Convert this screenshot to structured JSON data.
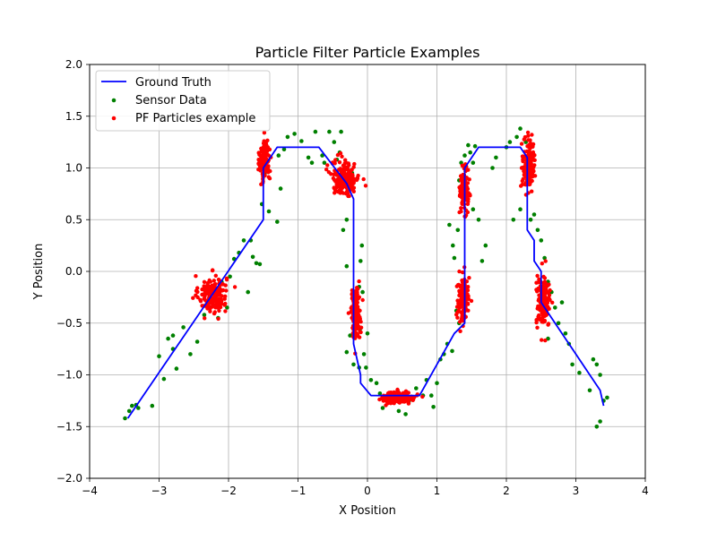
{
  "chart_data": {
    "type": "scatter",
    "title": "Particle Filter Particle Examples",
    "xlabel": "X Position",
    "ylabel": "Y Position",
    "xlim": [
      -4,
      4
    ],
    "ylim": [
      -2,
      2
    ],
    "xticks": [
      -4,
      -3,
      -2,
      -1,
      0,
      1,
      2,
      3,
      4
    ],
    "xtick_labels": [
      "−4",
      "−3",
      "−2",
      "−1",
      "0",
      "1",
      "2",
      "3",
      "4"
    ],
    "yticks": [
      -2.0,
      -1.5,
      -1.0,
      -0.5,
      0.0,
      0.5,
      1.0,
      1.5,
      2.0
    ],
    "ytick_labels": [
      "−2.0",
      "−1.5",
      "−1.0",
      "−0.5",
      "0.0",
      "0.5",
      "1.0",
      "1.5",
      "2.0"
    ],
    "grid": true,
    "legend_position": "top-left",
    "legend": [
      {
        "label": "Ground Truth",
        "kind": "line",
        "color": "#0000ff"
      },
      {
        "label": "Sensor Data",
        "kind": "marker",
        "color": "#008000"
      },
      {
        "label": "PF Particles example",
        "kind": "marker",
        "color": "#ff0000"
      }
    ],
    "series": [
      {
        "name": "Ground Truth",
        "kind": "line",
        "color": "#0000ff",
        "points": [
          [
            -3.45,
            -1.42
          ],
          [
            -1.5,
            0.5
          ],
          [
            -1.5,
            1.0
          ],
          [
            -1.3,
            1.2
          ],
          [
            -0.7,
            1.2
          ],
          [
            -0.3,
            0.85
          ],
          [
            -0.2,
            0.7
          ],
          [
            -0.2,
            -0.7
          ],
          [
            -0.1,
            -1.0
          ],
          [
            -0.1,
            -1.08
          ],
          [
            0.05,
            -1.2
          ],
          [
            0.75,
            -1.2
          ],
          [
            1.25,
            -0.6
          ],
          [
            1.4,
            -0.5
          ],
          [
            1.4,
            1.0
          ],
          [
            1.6,
            1.2
          ],
          [
            2.2,
            1.2
          ],
          [
            2.3,
            1.1
          ],
          [
            2.3,
            0.4
          ],
          [
            2.4,
            0.3
          ],
          [
            2.4,
            0.1
          ],
          [
            2.5,
            0.0
          ],
          [
            2.5,
            -0.3
          ],
          [
            3.35,
            -1.15
          ],
          [
            3.4,
            -1.3
          ]
        ]
      },
      {
        "name": "Sensor Data",
        "kind": "scatter",
        "color": "#008000",
        "points": [
          [
            -3.49,
            -1.42
          ],
          [
            -3.43,
            -1.35
          ],
          [
            -3.39,
            -1.3
          ],
          [
            -3.33,
            -1.29
          ],
          [
            -3.3,
            -1.32
          ],
          [
            -3.1,
            -1.3
          ],
          [
            -3.0,
            -0.82
          ],
          [
            -2.93,
            -1.04
          ],
          [
            -2.87,
            -0.65
          ],
          [
            -2.8,
            -0.75
          ],
          [
            -2.75,
            -0.94
          ],
          [
            -2.65,
            -0.54
          ],
          [
            -2.55,
            -0.8
          ],
          [
            -2.45,
            -0.68
          ],
          [
            -2.35,
            -0.42
          ],
          [
            -2.25,
            -0.3
          ],
          [
            -2.15,
            -0.45
          ],
          [
            -2.1,
            -0.1
          ],
          [
            -2.02,
            -0.35
          ],
          [
            -1.98,
            -0.05
          ],
          [
            -1.92,
            0.12
          ],
          [
            -1.85,
            0.18
          ],
          [
            -1.78,
            0.3
          ],
          [
            -1.72,
            -0.2
          ],
          [
            -1.68,
            0.3
          ],
          [
            -1.65,
            0.14
          ],
          [
            -1.6,
            0.08
          ],
          [
            -1.55,
            0.07
          ],
          [
            -1.52,
            0.65
          ],
          [
            -1.42,
            0.58
          ],
          [
            -1.3,
            0.48
          ],
          [
            -1.25,
            0.8
          ],
          [
            -1.48,
            0.94
          ],
          [
            -1.28,
            1.12
          ],
          [
            -1.2,
            1.18
          ],
          [
            -1.15,
            1.3
          ],
          [
            -1.05,
            1.33
          ],
          [
            -0.95,
            1.26
          ],
          [
            -0.85,
            1.1
          ],
          [
            -0.8,
            1.05
          ],
          [
            -0.75,
            1.35
          ],
          [
            -0.65,
            1.12
          ],
          [
            -0.62,
            1.05
          ],
          [
            -0.55,
            1.35
          ],
          [
            -0.48,
            1.25
          ],
          [
            -0.44,
            1.08
          ],
          [
            -0.4,
            1.15
          ],
          [
            -0.38,
            1.35
          ],
          [
            -0.3,
            0.5
          ],
          [
            -0.35,
            0.4
          ],
          [
            -0.25,
            0.85
          ],
          [
            -0.22,
            0.95
          ],
          [
            -0.3,
            0.05
          ],
          [
            -0.12,
            -0.15
          ],
          [
            -0.15,
            -0.25
          ],
          [
            -0.1,
            -0.55
          ],
          [
            -0.07,
            -0.2
          ],
          [
            -0.1,
            0.1
          ],
          [
            -0.08,
            0.25
          ],
          [
            -0.25,
            -0.62
          ],
          [
            -0.3,
            -0.78
          ],
          [
            -0.2,
            -0.9
          ],
          [
            -0.12,
            -0.93
          ],
          [
            -0.05,
            -0.8
          ],
          [
            -0.02,
            -0.93
          ],
          [
            0.05,
            -1.05
          ],
          [
            0.13,
            -1.08
          ],
          [
            0.18,
            -1.18
          ],
          [
            0.22,
            -1.32
          ],
          [
            0.3,
            -1.26
          ],
          [
            0.45,
            -1.35
          ],
          [
            0.55,
            -1.38
          ],
          [
            0.6,
            -1.25
          ],
          [
            0.7,
            -1.13
          ],
          [
            0.8,
            -1.2
          ],
          [
            0.85,
            -1.05
          ],
          [
            0.92,
            -1.2
          ],
          [
            0.95,
            -1.31
          ],
          [
            1.0,
            -1.08
          ],
          [
            1.05,
            -0.85
          ],
          [
            1.1,
            -0.8
          ],
          [
            1.15,
            -0.7
          ],
          [
            1.22,
            -0.77
          ],
          [
            1.28,
            -0.38
          ],
          [
            1.32,
            -0.5
          ],
          [
            1.18,
            0.45
          ],
          [
            1.23,
            0.25
          ],
          [
            1.25,
            0.13
          ],
          [
            1.3,
            0.4
          ],
          [
            1.32,
            0.88
          ],
          [
            1.35,
            1.05
          ],
          [
            1.4,
            1.12
          ],
          [
            1.45,
            1.22
          ],
          [
            1.48,
            1.15
          ],
          [
            1.52,
            1.05
          ],
          [
            1.55,
            1.21
          ],
          [
            1.52,
            0.6
          ],
          [
            1.6,
            0.5
          ],
          [
            1.65,
            0.1
          ],
          [
            1.7,
            0.25
          ],
          [
            1.8,
            1.0
          ],
          [
            1.85,
            1.1
          ],
          [
            2.0,
            1.2
          ],
          [
            2.05,
            1.25
          ],
          [
            2.15,
            1.3
          ],
          [
            2.2,
            1.38
          ],
          [
            2.28,
            1.25
          ],
          [
            2.3,
            1.1
          ],
          [
            2.1,
            0.5
          ],
          [
            2.2,
            0.6
          ],
          [
            2.35,
            0.5
          ],
          [
            2.4,
            0.55
          ],
          [
            2.45,
            0.4
          ],
          [
            2.5,
            0.3
          ],
          [
            2.55,
            0.13
          ],
          [
            2.6,
            -0.1
          ],
          [
            2.65,
            -0.2
          ],
          [
            2.7,
            -0.35
          ],
          [
            2.75,
            -0.5
          ],
          [
            2.8,
            -0.3
          ],
          [
            2.85,
            -0.6
          ],
          [
            2.9,
            -0.7
          ],
          [
            2.95,
            -0.9
          ],
          [
            3.05,
            -0.98
          ],
          [
            3.2,
            -1.15
          ],
          [
            3.25,
            -0.85
          ],
          [
            3.3,
            -0.9
          ],
          [
            3.35,
            -1.0
          ],
          [
            3.4,
            -1.25
          ],
          [
            3.45,
            -1.22
          ],
          [
            3.3,
            -1.5
          ],
          [
            3.35,
            -1.45
          ],
          [
            2.6,
            -0.65
          ],
          [
            -2.8,
            -0.62
          ],
          [
            0.0,
            -0.6
          ]
        ]
      },
      {
        "name": "PF Particles example",
        "kind": "scatter",
        "color": "#ff0000",
        "clusters": [
          {
            "center": [
              -2.23,
              -0.22
            ],
            "spread": [
              0.1,
              0.09
            ],
            "count": 180
          },
          {
            "center": [
              -1.48,
              1.07
            ],
            "spread": [
              0.035,
              0.1
            ],
            "count": 150
          },
          {
            "center": [
              -0.32,
              0.9
            ],
            "spread": [
              0.1,
              0.08
            ],
            "count": 190
          },
          {
            "center": [
              -0.17,
              -0.4
            ],
            "spread": [
              0.035,
              0.12
            ],
            "count": 150
          },
          {
            "center": [
              0.45,
              -1.22
            ],
            "spread": [
              0.12,
              0.03
            ],
            "count": 150
          },
          {
            "center": [
              1.38,
              -0.27
            ],
            "spread": [
              0.045,
              0.11
            ],
            "count": 150
          },
          {
            "center": [
              1.39,
              0.8
            ],
            "spread": [
              0.03,
              0.1
            ],
            "count": 130
          },
          {
            "center": [
              2.32,
              1.03
            ],
            "spread": [
              0.045,
              0.12
            ],
            "count": 160
          },
          {
            "center": [
              2.53,
              -0.3
            ],
            "spread": [
              0.05,
              0.12
            ],
            "count": 160
          }
        ]
      }
    ]
  }
}
